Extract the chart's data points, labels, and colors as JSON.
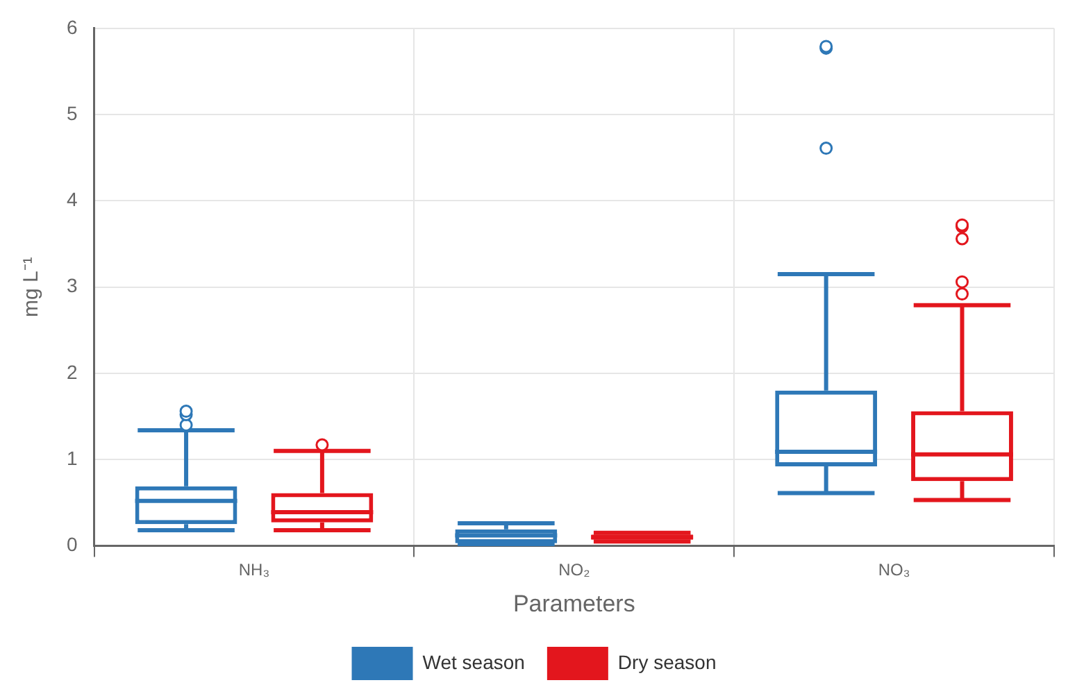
{
  "chart_data": {
    "type": "box",
    "xlabel": "Parameters",
    "ylabel": "mg L⁻¹",
    "categories": [
      "NH₃",
      "NO₂",
      "NO₃"
    ],
    "series": [
      {
        "name": "Wet season",
        "color": "#2e78b7",
        "boxes": [
          {
            "low": 0.18,
            "q1": 0.25,
            "median": 0.52,
            "q3": 0.69,
            "high": 1.34,
            "outliers": [
              1.4,
              1.52,
              1.56
            ]
          },
          {
            "low": 0.02,
            "q1": 0.03,
            "median": 0.12,
            "q3": 0.19,
            "high": 0.26
          },
          {
            "low": 0.61,
            "q1": 0.92,
            "median": 1.09,
            "q3": 1.8,
            "high": 3.15,
            "outliers": [
              4.61,
              5.77,
              5.79
            ]
          }
        ]
      },
      {
        "name": "Dry season",
        "color": "#e3161d",
        "boxes": [
          {
            "low": 0.18,
            "q1": 0.27,
            "median": 0.39,
            "q3": 0.61,
            "high": 1.1,
            "outliers": [
              1.17
            ]
          },
          {
            "low": 0.05,
            "q1": 0.07,
            "median": 0.1,
            "q3": 0.13,
            "high": 0.15
          },
          {
            "low": 0.53,
            "q1": 0.75,
            "median": 1.06,
            "q3": 1.56,
            "high": 2.79,
            "outliers": [
              2.92,
              3.06,
              3.56,
              3.7,
              3.72
            ]
          }
        ]
      }
    ],
    "ylim": [
      0,
      6
    ],
    "yticks": [
      0,
      1,
      2,
      3,
      4,
      5,
      6
    ],
    "grid": true,
    "legend": "bottom"
  }
}
